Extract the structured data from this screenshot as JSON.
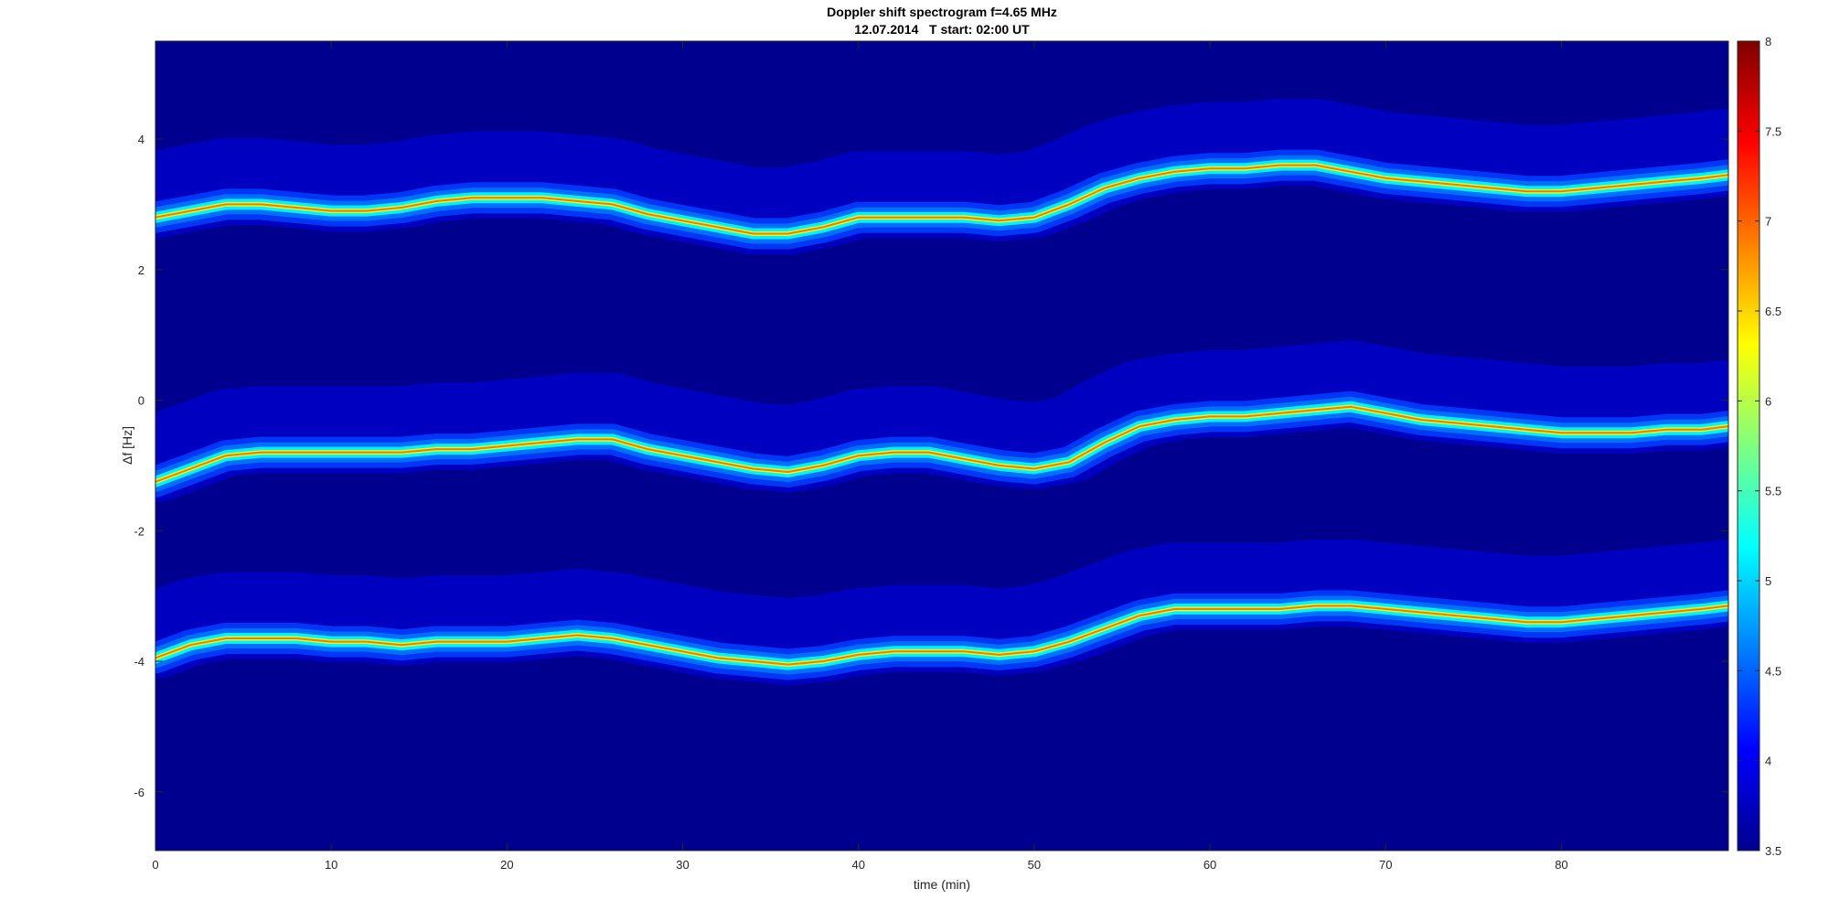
{
  "chart_data": {
    "type": "heatmap",
    "title": "Doppler shift spectrogram f=4.65 MHz",
    "subtitle": "12.07.2014   T start: 02:00 UT",
    "xlabel": "time (min)",
    "ylabel": "Δf [Hz]",
    "xlim": [
      0,
      89.5
    ],
    "ylim": [
      -6.9,
      5.5
    ],
    "x_ticks": [
      0,
      10,
      20,
      30,
      40,
      50,
      60,
      70,
      80
    ],
    "x_tick_labels": [
      "0",
      "10",
      "20",
      "30",
      "40",
      "50",
      "60",
      "70",
      "80"
    ],
    "y_ticks": [
      4,
      2,
      0,
      -2,
      -4,
      -6
    ],
    "y_tick_labels": [
      "4",
      "2",
      "0",
      "-2",
      "-4",
      "-6"
    ],
    "colorbar": {
      "colormap": "jet",
      "clim": [
        3.5,
        8
      ],
      "ticks": [
        8,
        7.5,
        7,
        6.5,
        6,
        5.5,
        5,
        4.5,
        4,
        3.5
      ],
      "tick_labels": [
        "8",
        "7.5",
        "7",
        "6.5",
        "6",
        "5.5",
        "5",
        "4.5",
        "4",
        "3.5"
      ]
    },
    "series": [
      {
        "x": [
          0,
          2,
          4,
          6,
          8,
          10,
          12,
          14,
          16,
          18,
          20,
          22,
          24,
          26,
          28,
          30,
          32,
          34,
          36,
          38,
          40,
          42,
          44,
          46,
          48,
          50,
          52,
          54,
          56,
          58,
          60,
          62,
          64,
          66,
          68,
          70,
          72,
          74,
          76,
          78,
          80,
          82,
          84,
          86,
          88,
          89.5
        ],
        "y": [
          2.8,
          2.9,
          3.0,
          3.0,
          2.95,
          2.9,
          2.9,
          2.95,
          3.05,
          3.1,
          3.1,
          3.1,
          3.05,
          3.0,
          2.85,
          2.75,
          2.65,
          2.55,
          2.55,
          2.65,
          2.8,
          2.8,
          2.8,
          2.8,
          2.75,
          2.8,
          3.0,
          3.25,
          3.4,
          3.5,
          3.55,
          3.55,
          3.6,
          3.6,
          3.5,
          3.4,
          3.35,
          3.3,
          3.25,
          3.2,
          3.2,
          3.25,
          3.3,
          3.35,
          3.4,
          3.45
        ]
      },
      {
        "x": [
          0,
          2,
          4,
          6,
          8,
          10,
          12,
          14,
          16,
          18,
          20,
          22,
          24,
          26,
          28,
          30,
          32,
          34,
          36,
          38,
          40,
          42,
          44,
          46,
          48,
          50,
          52,
          54,
          56,
          58,
          60,
          62,
          64,
          66,
          68,
          70,
          72,
          74,
          76,
          78,
          80,
          82,
          84,
          86,
          88,
          89.5
        ],
        "y": [
          -1.25,
          -1.05,
          -0.85,
          -0.8,
          -0.8,
          -0.8,
          -0.8,
          -0.8,
          -0.75,
          -0.75,
          -0.7,
          -0.65,
          -0.6,
          -0.6,
          -0.75,
          -0.85,
          -0.95,
          -1.05,
          -1.1,
          -1.0,
          -0.85,
          -0.8,
          -0.8,
          -0.9,
          -1.0,
          -1.05,
          -0.95,
          -0.65,
          -0.4,
          -0.3,
          -0.25,
          -0.25,
          -0.2,
          -0.15,
          -0.1,
          -0.2,
          -0.3,
          -0.35,
          -0.4,
          -0.45,
          -0.5,
          -0.5,
          -0.5,
          -0.45,
          -0.45,
          -0.4
        ]
      },
      {
        "x": [
          0,
          2,
          4,
          6,
          8,
          10,
          12,
          14,
          16,
          18,
          20,
          22,
          24,
          26,
          28,
          30,
          32,
          34,
          36,
          38,
          40,
          42,
          44,
          46,
          48,
          50,
          52,
          54,
          56,
          58,
          60,
          62,
          64,
          66,
          68,
          70,
          72,
          74,
          76,
          78,
          80,
          82,
          84,
          86,
          88,
          89.5
        ],
        "y": [
          -3.95,
          -3.75,
          -3.65,
          -3.65,
          -3.65,
          -3.7,
          -3.7,
          -3.75,
          -3.7,
          -3.7,
          -3.7,
          -3.65,
          -3.6,
          -3.65,
          -3.75,
          -3.85,
          -3.95,
          -4.0,
          -4.05,
          -4.0,
          -3.9,
          -3.85,
          -3.85,
          -3.85,
          -3.9,
          -3.85,
          -3.7,
          -3.5,
          -3.3,
          -3.2,
          -3.2,
          -3.2,
          -3.2,
          -3.15,
          -3.15,
          -3.2,
          -3.25,
          -3.3,
          -3.35,
          -3.4,
          -3.4,
          -3.35,
          -3.3,
          -3.25,
          -3.2,
          -3.15
        ]
      }
    ]
  }
}
